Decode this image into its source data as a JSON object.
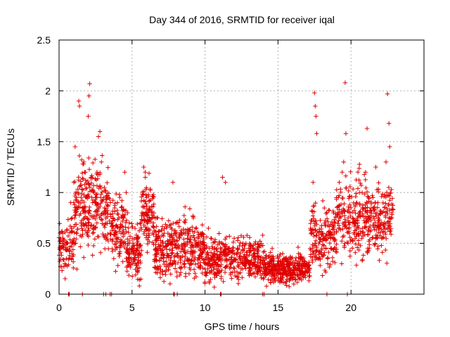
{
  "chart_data": {
    "type": "scatter",
    "title": "Day 344 of 2016, SRMTID for receiver iqal",
    "xlabel": "GPS time / hours",
    "ylabel": "SRMTID / TECUs",
    "xlim": [
      0,
      25
    ],
    "ylim": [
      0,
      2.5
    ],
    "xticks": [
      0,
      5,
      10,
      15,
      20
    ],
    "xtick_labels": [
      "0",
      "5",
      "10",
      "15",
      "20"
    ],
    "yticks": [
      0,
      0.5,
      1,
      1.5,
      2,
      2.5
    ],
    "ytick_labels": [
      "0",
      "0.5",
      "1",
      "1.5",
      "2",
      "2.5"
    ],
    "grid": true,
    "marker": "+",
    "color": "#e00000",
    "series": [
      {
        "name": "SRMTID",
        "points": [
          [
            0.1,
            0.55
          ],
          [
            0.2,
            0.62
          ],
          [
            0.3,
            0.45
          ],
          [
            0.4,
            0.3
          ],
          [
            0.5,
            0.35
          ],
          [
            0.6,
            0.5
          ],
          [
            0.7,
            0.42
          ],
          [
            0.8,
            0.9
          ],
          [
            0.9,
            0.75
          ],
          [
            1.0,
            1.1
          ],
          [
            1.1,
            1.45
          ],
          [
            1.2,
            0.95
          ],
          [
            1.3,
            1.0
          ],
          [
            1.35,
            1.9
          ],
          [
            1.4,
            1.85
          ],
          [
            1.5,
            0.7
          ],
          [
            1.6,
            0.85
          ],
          [
            1.7,
            1.3
          ],
          [
            1.8,
            1.2
          ],
          [
            1.9,
            0.6
          ],
          [
            2.0,
            1.75
          ],
          [
            2.05,
            1.95
          ],
          [
            2.1,
            2.07
          ],
          [
            2.2,
            1.15
          ],
          [
            2.3,
            0.9
          ],
          [
            2.4,
            1.0
          ],
          [
            2.5,
            0.65
          ],
          [
            2.6,
            1.2
          ],
          [
            2.7,
            1.55
          ],
          [
            2.8,
            1.6
          ],
          [
            2.9,
            1.3
          ],
          [
            3.0,
            0.8
          ],
          [
            3.1,
            1.05
          ],
          [
            3.2,
            0.7
          ],
          [
            3.3,
            0.95
          ],
          [
            3.5,
            0.6
          ],
          [
            3.7,
            0.75
          ],
          [
            3.9,
            0.55
          ],
          [
            4.0,
            0.9
          ],
          [
            4.2,
            0.65
          ],
          [
            4.4,
            0.5
          ],
          [
            4.5,
            1.2
          ],
          [
            4.6,
            1.0
          ],
          [
            4.7,
            0.8
          ],
          [
            4.8,
            0.35
          ],
          [
            5.0,
            0.45
          ],
          [
            5.2,
            0.3
          ],
          [
            5.4,
            0.55
          ],
          [
            5.6,
            0.7
          ],
          [
            5.8,
            1.25
          ],
          [
            5.9,
            1.2
          ],
          [
            6.0,
            0.95
          ],
          [
            6.2,
            0.85
          ],
          [
            6.4,
            0.6
          ],
          [
            6.6,
            0.45
          ],
          [
            6.8,
            0.55
          ],
          [
            7.0,
            0.35
          ],
          [
            7.2,
            0.6
          ],
          [
            7.4,
            0.4
          ],
          [
            7.6,
            0.5
          ],
          [
            7.8,
            1.1
          ],
          [
            8.0,
            0.7
          ],
          [
            8.2,
            0.45
          ],
          [
            8.4,
            0.6
          ],
          [
            8.6,
            0.3
          ],
          [
            8.8,
            0.55
          ],
          [
            9.0,
            0.4
          ],
          [
            9.2,
            0.75
          ],
          [
            9.4,
            0.5
          ],
          [
            9.6,
            0.35
          ],
          [
            9.8,
            0.6
          ],
          [
            10.0,
            0.45
          ],
          [
            10.2,
            0.3
          ],
          [
            10.4,
            0.55
          ],
          [
            10.6,
            0.4
          ],
          [
            10.8,
            0.25
          ],
          [
            11.0,
            0.5
          ],
          [
            11.2,
            1.15
          ],
          [
            11.4,
            1.1
          ],
          [
            11.6,
            0.45
          ],
          [
            11.8,
            0.3
          ],
          [
            12.0,
            0.55
          ],
          [
            12.2,
            0.4
          ],
          [
            12.4,
            0.35
          ],
          [
            12.6,
            0.5
          ],
          [
            12.8,
            0.3
          ],
          [
            13.0,
            0.45
          ],
          [
            13.2,
            0.25
          ],
          [
            13.4,
            0.35
          ],
          [
            13.6,
            0.2
          ],
          [
            13.8,
            0.3
          ],
          [
            14.0,
            0.15
          ],
          [
            14.2,
            0.35
          ],
          [
            14.4,
            0.2
          ],
          [
            14.6,
            0.45
          ],
          [
            14.8,
            0.25
          ],
          [
            15.0,
            0.3
          ],
          [
            15.2,
            0.15
          ],
          [
            15.4,
            0.35
          ],
          [
            15.6,
            0.2
          ],
          [
            15.8,
            0.3
          ],
          [
            16.0,
            0.15
          ],
          [
            16.2,
            0.25
          ],
          [
            16.4,
            0.4
          ],
          [
            16.6,
            0.2
          ],
          [
            16.8,
            0.3
          ],
          [
            17.0,
            0.25
          ],
          [
            17.2,
            0.45
          ],
          [
            17.4,
            1.1
          ],
          [
            17.5,
            1.98
          ],
          [
            17.55,
            1.85
          ],
          [
            17.6,
            1.75
          ],
          [
            17.65,
            1.58
          ],
          [
            17.8,
            0.6
          ],
          [
            18.0,
            0.45
          ],
          [
            18.2,
            0.7
          ],
          [
            18.4,
            0.3
          ],
          [
            18.6,
            0.55
          ],
          [
            18.8,
            0.8
          ],
          [
            19.0,
            0.95
          ],
          [
            19.2,
            1.1
          ],
          [
            19.4,
            1.2
          ],
          [
            19.5,
            1.3
          ],
          [
            19.6,
            2.08
          ],
          [
            19.65,
            1.58
          ],
          [
            19.8,
            0.5
          ],
          [
            20.0,
            0.85
          ],
          [
            20.2,
            0.7
          ],
          [
            20.4,
            0.9
          ],
          [
            20.6,
            1.0
          ],
          [
            20.8,
            0.6
          ],
          [
            21.0,
            1.2
          ],
          [
            21.1,
            1.63
          ],
          [
            21.3,
            0.75
          ],
          [
            21.5,
            0.95
          ],
          [
            21.7,
            1.25
          ],
          [
            21.9,
            0.7
          ],
          [
            22.1,
            0.55
          ],
          [
            22.3,
            0.85
          ],
          [
            22.4,
            1.3
          ],
          [
            22.5,
            1.97
          ],
          [
            22.6,
            1.68
          ],
          [
            22.65,
            1.45
          ],
          [
            22.7,
            1.0
          ],
          [
            22.8,
            0.8
          ]
        ]
      }
    ],
    "noise_model": {
      "segments": [
        {
          "x_start": 0.0,
          "x_end": 1.0,
          "y_center": 0.45,
          "y_spread": 0.25,
          "count": 80
        },
        {
          "x_start": 1.0,
          "x_end": 3.5,
          "y_center": 0.85,
          "y_spread": 0.45,
          "count": 260
        },
        {
          "x_start": 3.5,
          "x_end": 4.6,
          "y_center": 0.65,
          "y_spread": 0.35,
          "count": 110
        },
        {
          "x_start": 4.6,
          "x_end": 5.6,
          "y_center": 0.4,
          "y_spread": 0.3,
          "count": 120
        },
        {
          "x_start": 5.6,
          "x_end": 6.5,
          "y_center": 0.75,
          "y_spread": 0.35,
          "count": 110
        },
        {
          "x_start": 6.5,
          "x_end": 10.0,
          "y_center": 0.45,
          "y_spread": 0.3,
          "count": 380
        },
        {
          "x_start": 10.0,
          "x_end": 14.0,
          "y_center": 0.35,
          "y_spread": 0.22,
          "count": 380
        },
        {
          "x_start": 14.0,
          "x_end": 17.2,
          "y_center": 0.25,
          "y_spread": 0.15,
          "count": 360
        },
        {
          "x_start": 17.2,
          "x_end": 19.0,
          "y_center": 0.55,
          "y_spread": 0.35,
          "count": 170
        },
        {
          "x_start": 19.0,
          "x_end": 22.9,
          "y_center": 0.75,
          "y_spread": 0.4,
          "count": 370
        }
      ],
      "zero_x": [
        0.65,
        0.7,
        1.6,
        3.05,
        3.2,
        3.5,
        3.6,
        7.85,
        7.9,
        8.1,
        11.05,
        11.1,
        13.95,
        14.05,
        18.35,
        19.75
      ]
    }
  }
}
